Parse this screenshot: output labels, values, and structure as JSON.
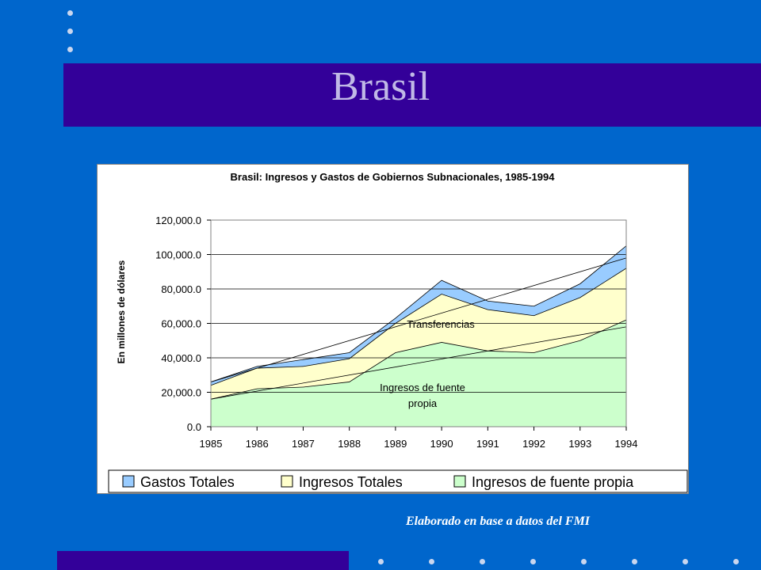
{
  "slide": {
    "title": "Brasil",
    "credit": "Elaborado en base a datos del FMI",
    "colors": {
      "background": "#0066cc",
      "bar": "#330099",
      "title_text": "#c0b9e6",
      "dots": "#c9d6ef"
    }
  },
  "chart_data": {
    "type": "area",
    "title": "Brasil: Ingresos y Gastos de Gobiernos Subnacionales, 1985-1994",
    "xlabel": "",
    "ylabel": "En millones de dólares",
    "categories": [
      "1985",
      "1986",
      "1987",
      "1988",
      "1989",
      "1990",
      "1991",
      "1992",
      "1993",
      "1994"
    ],
    "ylim": [
      0,
      120000
    ],
    "yticks": [
      "0.0",
      "20,000.0",
      "40,000.0",
      "60,000.0",
      "80,000.0",
      "100,000.0",
      "120,000.0"
    ],
    "grid": true,
    "legend_position": "bottom",
    "series": [
      {
        "name": "Gastos Totales",
        "color": "#99ccff",
        "values": [
          26000,
          35000,
          39000,
          43000,
          63000,
          85000,
          73000,
          70000,
          83000,
          105000
        ]
      },
      {
        "name": "Ingresos Totales",
        "color": "#ffffcc",
        "values": [
          24000,
          34000,
          35000,
          39500,
          60000,
          77000,
          68000,
          64500,
          75000,
          92000
        ]
      },
      {
        "name": "Ingresos de fuente propia",
        "color": "#ccffcc",
        "values": [
          16000,
          22000,
          23000,
          26000,
          43000,
          49000,
          44000,
          43000,
          50000,
          62000
        ]
      }
    ],
    "trendlines": [
      {
        "start": 26000,
        "end": 98000
      },
      {
        "start": 16000,
        "end": 58000
      }
    ],
    "annotations": [
      {
        "text": "Transferencias"
      },
      {
        "text": "Ingresos de fuente"
      },
      {
        "text": "propia"
      }
    ]
  }
}
